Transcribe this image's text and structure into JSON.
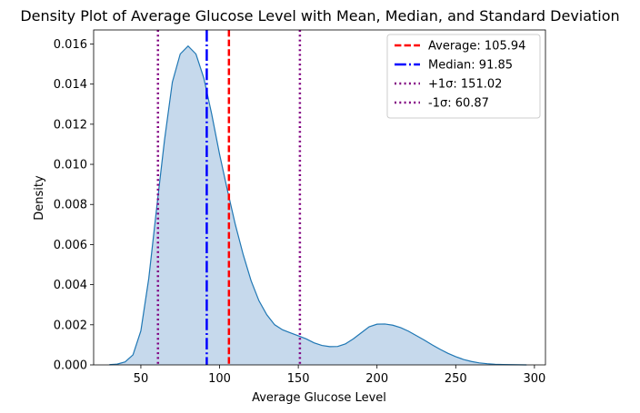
{
  "chart_data": {
    "type": "area",
    "title": "Density Plot of Average Glucose Level with Mean, Median, and Standard Deviation",
    "xlabel": "Average Glucose Level",
    "ylabel": "Density",
    "xlim": [
      20,
      307
    ],
    "ylim": [
      0,
      0.0167
    ],
    "x_ticks": [
      "50",
      "100",
      "150",
      "200",
      "250",
      "300"
    ],
    "y_ticks": [
      "0.000",
      "0.002",
      "0.004",
      "0.006",
      "0.008",
      "0.010",
      "0.012",
      "0.014",
      "0.016"
    ],
    "grid": false,
    "legend_position": "top-right",
    "density": {
      "x": [
        30,
        35,
        40,
        45,
        50,
        55,
        60,
        65,
        70,
        75,
        80,
        85,
        90,
        95,
        100,
        105,
        110,
        115,
        120,
        125,
        130,
        135,
        140,
        145,
        150,
        155,
        160,
        165,
        170,
        175,
        180,
        185,
        190,
        195,
        200,
        205,
        210,
        215,
        220,
        225,
        230,
        235,
        240,
        245,
        250,
        255,
        260,
        265,
        270,
        275,
        280,
        285,
        290,
        295
      ],
      "y": [
        1e-05,
        4e-05,
        0.00015,
        0.0005,
        0.0017,
        0.0043,
        0.0078,
        0.0112,
        0.0141,
        0.0155,
        0.0159,
        0.0155,
        0.0143,
        0.0125,
        0.0105,
        0.0087,
        0.007,
        0.0055,
        0.0042,
        0.0032,
        0.0025,
        0.002,
        0.00175,
        0.0016,
        0.00145,
        0.0013,
        0.0011,
        0.00097,
        0.00091,
        0.00092,
        0.00105,
        0.0013,
        0.0016,
        0.0019,
        0.00203,
        0.00204,
        0.00198,
        0.00186,
        0.00168,
        0.00146,
        0.00124,
        0.001,
        0.00078,
        0.00058,
        0.00041,
        0.00027,
        0.00017,
        0.0001,
        6e-05,
        3e-05,
        2e-05,
        1e-05,
        5e-06,
        0.0
      ],
      "color": "#1f77b4",
      "fill": "#c6d9ec"
    },
    "reference_lines": [
      {
        "label": "Average: 105.94",
        "x": 105.94,
        "color": "#ff0000",
        "style": "dashed"
      },
      {
        "label": "Median: 91.85",
        "x": 91.85,
        "color": "#0000ff",
        "style": "dashdot"
      },
      {
        "label": "+1σ: 151.02",
        "x": 151.02,
        "color": "#800080",
        "style": "dotted"
      },
      {
        "label": "-1σ: 60.87",
        "x": 60.87,
        "color": "#800080",
        "style": "dotted"
      }
    ]
  }
}
